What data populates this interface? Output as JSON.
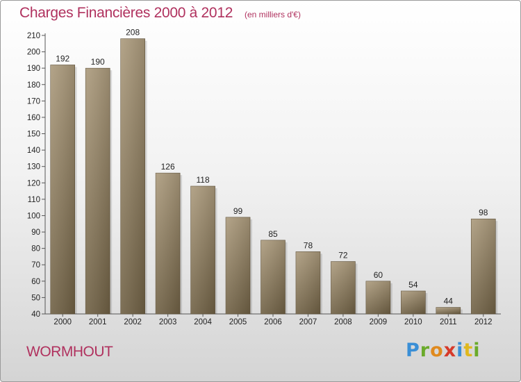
{
  "title": "Charges Financières 2000 à 2012",
  "subtitle": "(en milliers d'€)",
  "commune": "WORMHOUT",
  "logo": {
    "text": "Proxiti",
    "colors": [
      "#3a8fd6",
      "#6aaa2a",
      "#e08a1e",
      "#d63a2a",
      "#3a8fd6",
      "#e0b81e",
      "#6aaa2a"
    ]
  },
  "chart_data": {
    "type": "bar",
    "categories": [
      "2000",
      "2001",
      "2002",
      "2003",
      "2004",
      "2005",
      "2006",
      "2007",
      "2008",
      "2009",
      "2010",
      "2011",
      "2012"
    ],
    "values": [
      192,
      190,
      208,
      126,
      118,
      99,
      85,
      78,
      72,
      60,
      54,
      44,
      98
    ],
    "ylim": [
      40,
      210
    ],
    "yticks": [
      40,
      50,
      60,
      70,
      80,
      90,
      100,
      110,
      120,
      130,
      140,
      150,
      160,
      170,
      180,
      190,
      200,
      210
    ],
    "grid": false,
    "bar_color": "#8a7a5e"
  }
}
